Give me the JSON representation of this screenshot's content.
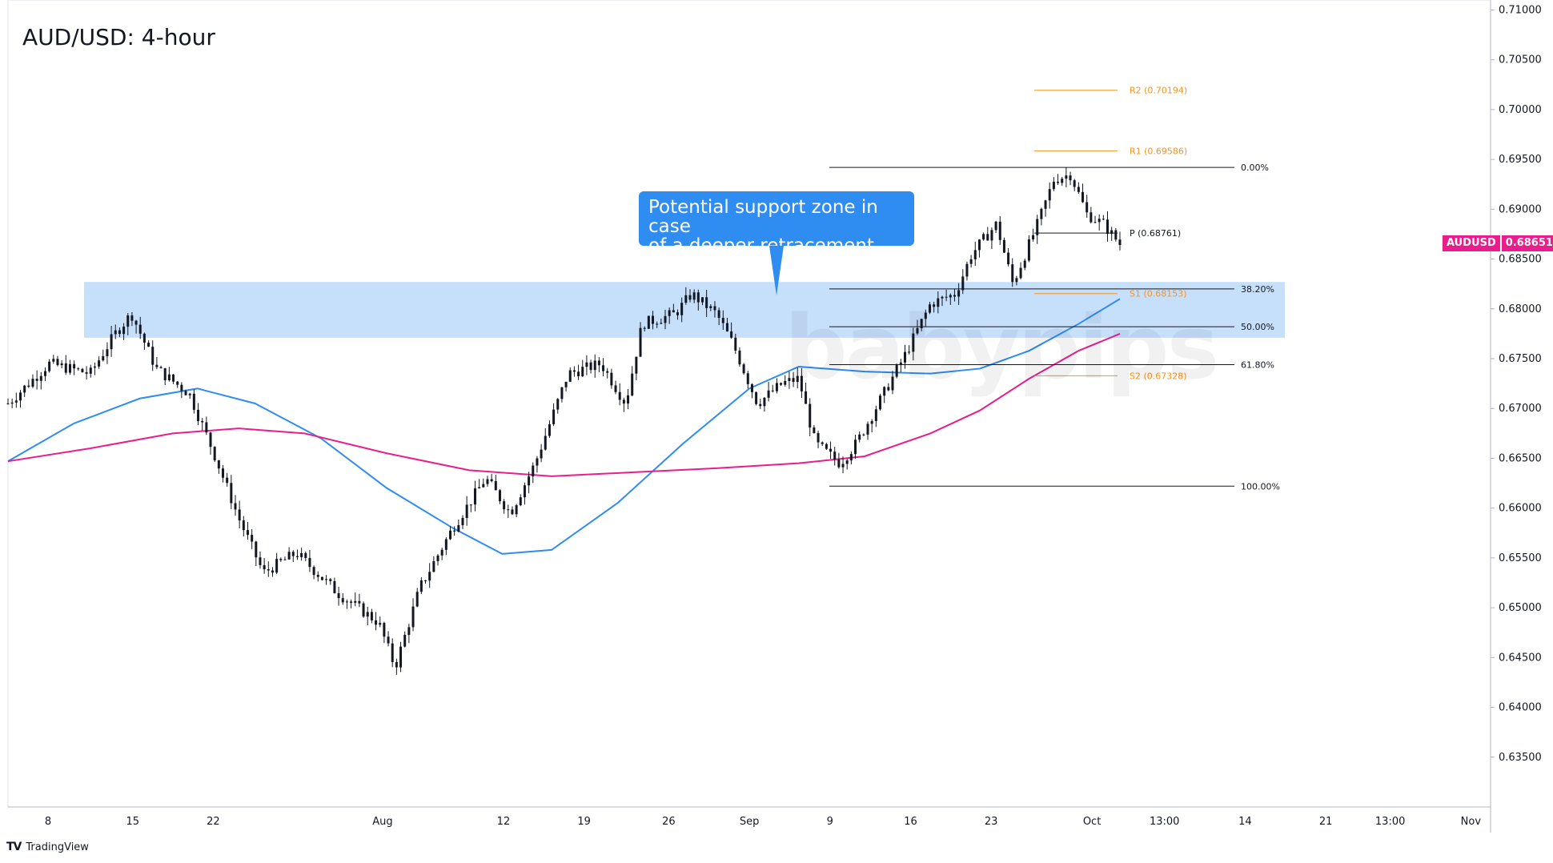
{
  "colors": {
    "bull": "#089981",
    "bear": "#f23645",
    "ma_fast": "#2f8cf0",
    "ma_slow": "#e91e8c",
    "zone": "#bcdafb",
    "pivot": "#f7931e",
    "fib": "#131722",
    "callout": "#2f8cf0"
  },
  "chart_data": {
    "type": "candlestick",
    "title": "AUD/USD: 4-hour",
    "symbol": "AUDUSD",
    "last_price": "0.68651",
    "ylim": [
      0.63,
      0.711
    ],
    "y_ticks": [
      "0.71000",
      "0.70500",
      "0.70000",
      "0.69500",
      "0.69000",
      "0.68500",
      "0.68000",
      "0.67500",
      "0.67000",
      "0.66500",
      "0.66000",
      "0.65500",
      "0.65000",
      "0.64500",
      "0.64000",
      "0.63500"
    ],
    "x_ticks": [
      "8",
      "15",
      "22",
      "Aug",
      "12",
      "19",
      "26",
      "Sep",
      "9",
      "16",
      "23",
      "Oct",
      "13:00",
      "14",
      "21",
      "13:00",
      "Nov"
    ],
    "price_path": [
      {
        "x": 0,
        "y": 0.6705
      },
      {
        "x": 5,
        "y": 0.6745
      },
      {
        "x": 10,
        "y": 0.6735
      },
      {
        "x": 13,
        "y": 0.6775
      },
      {
        "x": 15,
        "y": 0.6795
      },
      {
        "x": 18,
        "y": 0.674
      },
      {
        "x": 22,
        "y": 0.6715
      },
      {
        "x": 25,
        "y": 0.6655
      },
      {
        "x": 28,
        "y": 0.659
      },
      {
        "x": 31,
        "y": 0.6535
      },
      {
        "x": 35,
        "y": 0.6555
      },
      {
        "x": 40,
        "y": 0.6515
      },
      {
        "x": 45,
        "y": 0.6485
      },
      {
        "x": 47,
        "y": 0.644
      },
      {
        "x": 50,
        "y": 0.652
      },
      {
        "x": 54,
        "y": 0.658
      },
      {
        "x": 58,
        "y": 0.663
      },
      {
        "x": 61,
        "y": 0.6595
      },
      {
        "x": 64,
        "y": 0.6645
      },
      {
        "x": 68,
        "y": 0.6735
      },
      {
        "x": 72,
        "y": 0.6745
      },
      {
        "x": 75,
        "y": 0.6705
      },
      {
        "x": 77,
        "y": 0.6785
      },
      {
        "x": 81,
        "y": 0.6795
      },
      {
        "x": 83,
        "y": 0.6815
      },
      {
        "x": 86,
        "y": 0.6795
      },
      {
        "x": 88,
        "y": 0.6765
      },
      {
        "x": 91,
        "y": 0.6705
      },
      {
        "x": 94,
        "y": 0.6725
      },
      {
        "x": 96,
        "y": 0.673
      },
      {
        "x": 98,
        "y": 0.6665
      },
      {
        "x": 101,
        "y": 0.6645
      },
      {
        "x": 103,
        "y": 0.6665
      },
      {
        "x": 106,
        "y": 0.671
      },
      {
        "x": 109,
        "y": 0.6755
      },
      {
        "x": 112,
        "y": 0.6805
      },
      {
        "x": 115,
        "y": 0.6815
      },
      {
        "x": 117,
        "y": 0.6855
      },
      {
        "x": 120,
        "y": 0.6885
      },
      {
        "x": 122,
        "y": 0.6825
      },
      {
        "x": 125,
        "y": 0.6885
      },
      {
        "x": 127,
        "y": 0.693
      },
      {
        "x": 129,
        "y": 0.6935
      },
      {
        "x": 131,
        "y": 0.6895
      },
      {
        "x": 133,
        "y": 0.6885
      },
      {
        "x": 135,
        "y": 0.6865
      }
    ],
    "moving_averages": [
      {
        "name": "",
        "points": [
          {
            "x": 0,
            "y": 0.6647
          },
          {
            "x": 8,
            "y": 0.6685
          },
          {
            "x": 16,
            "y": 0.671
          },
          {
            "x": 23,
            "y": 0.672
          },
          {
            "x": 30,
            "y": 0.6705
          },
          {
            "x": 38,
            "y": 0.667
          },
          {
            "x": 46,
            "y": 0.662
          },
          {
            "x": 54,
            "y": 0.658
          },
          {
            "x": 60,
            "y": 0.6554
          },
          {
            "x": 66,
            "y": 0.6558
          },
          {
            "x": 74,
            "y": 0.6605
          },
          {
            "x": 82,
            "y": 0.6665
          },
          {
            "x": 90,
            "y": 0.672
          },
          {
            "x": 96,
            "y": 0.6742
          },
          {
            "x": 104,
            "y": 0.6737
          },
          {
            "x": 112,
            "y": 0.6735
          },
          {
            "x": 118,
            "y": 0.674
          },
          {
            "x": 124,
            "y": 0.6758
          },
          {
            "x": 130,
            "y": 0.6785
          },
          {
            "x": 135,
            "y": 0.681
          }
        ]
      },
      {
        "name": "",
        "points": [
          {
            "x": 0,
            "y": 0.6647
          },
          {
            "x": 10,
            "y": 0.666
          },
          {
            "x": 20,
            "y": 0.6675
          },
          {
            "x": 28,
            "y": 0.668
          },
          {
            "x": 36,
            "y": 0.6675
          },
          {
            "x": 46,
            "y": 0.6655
          },
          {
            "x": 56,
            "y": 0.6638
          },
          {
            "x": 66,
            "y": 0.6632
          },
          {
            "x": 76,
            "y": 0.6636
          },
          {
            "x": 86,
            "y": 0.664
          },
          {
            "x": 96,
            "y": 0.6645
          },
          {
            "x": 104,
            "y": 0.6652
          },
          {
            "x": 112,
            "y": 0.6675
          },
          {
            "x": 118,
            "y": 0.6698
          },
          {
            "x": 124,
            "y": 0.673
          },
          {
            "x": 130,
            "y": 0.6758
          },
          {
            "x": 135,
            "y": 0.6775
          }
        ]
      }
    ],
    "zone": {
      "y_low": 0.6771,
      "y_high": 0.6827
    },
    "pivot_levels": [
      {
        "label": "R2 (0.70194)",
        "value": 0.70194
      },
      {
        "label": "R1 (0.69586)",
        "value": 0.69586
      },
      {
        "label": "P (0.68761)",
        "value": 0.68761
      },
      {
        "label": "S1 (0.68153)",
        "value": 0.68153
      },
      {
        "label": "S2 (0.67328)",
        "value": 0.67328
      }
    ],
    "fib_levels": [
      {
        "label": "0.00%",
        "value": 0.6942
      },
      {
        "label": "38.20%",
        "value": 0.682
      },
      {
        "label": "50.00%",
        "value": 0.6782
      },
      {
        "label": "61.80%",
        "value": 0.6744
      },
      {
        "label": "100.00%",
        "value": 0.6622
      }
    ],
    "annotation": {
      "lines": [
        "Potential support zone in case",
        "of a deeper retracement"
      ]
    }
  },
  "footer": {
    "brand": "TradingView",
    "logo": "TV"
  },
  "watermark": "babypips"
}
